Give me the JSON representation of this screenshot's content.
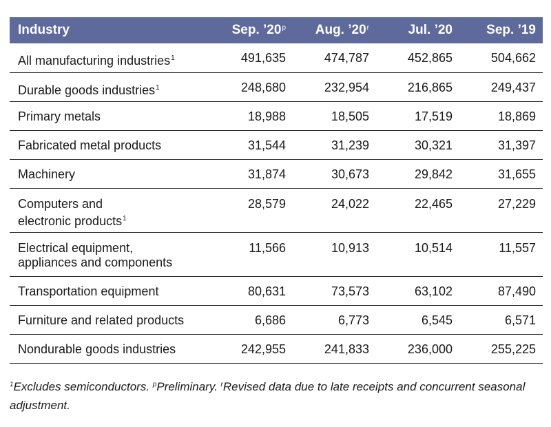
{
  "table": {
    "headers": {
      "industry": "Industry",
      "col1": "Sep. ’20",
      "col1_mark": "p",
      "col2": "Aug. ’20",
      "col2_mark": "r",
      "col3": "Jul. ’20",
      "col4": "Sep. ’19"
    },
    "rows": [
      {
        "label": "All manufacturing industries",
        "mark": "1",
        "v1": "491,635",
        "v2": "474,787",
        "v3": "452,865",
        "v4": "504,662"
      },
      {
        "label": "Durable goods industries",
        "mark": "1",
        "v1": "248,680",
        "v2": "232,954",
        "v3": "216,865",
        "v4": "249,437"
      },
      {
        "label": "Primary metals",
        "v1": "18,988",
        "v2": "18,505",
        "v3": "17,519",
        "v4": "18,869"
      },
      {
        "label": "Fabricated metal products",
        "v1": "31,544",
        "v2": "31,239",
        "v3": "30,321",
        "v4": "31,397"
      },
      {
        "label": "Machinery",
        "v1": "31,874",
        "v2": "30,673",
        "v3": "29,842",
        "v4": "31,655"
      },
      {
        "label_line1": "Computers and",
        "label_line2": "electronic products",
        "mark": "1",
        "v1": "28,579",
        "v2": "24,022",
        "v3": "22,465",
        "v4": "27,229"
      },
      {
        "label_line1": "Electrical equipment,",
        "label_line2": "appliances and components",
        "v1": "11,566",
        "v2": "10,913",
        "v3": "10,514",
        "v4": "11,557"
      },
      {
        "label": "Transportation equipment",
        "v1": "80,631",
        "v2": "73,573",
        "v3": "63,102",
        "v4": "87,490"
      },
      {
        "label": "Furniture and related products",
        "v1": "6,686",
        "v2": "6,773",
        "v3": "6,545",
        "v4": "6,571"
      },
      {
        "label": "Nondurable goods industries",
        "v1": "242,955",
        "v2": "241,833",
        "v3": "236,000",
        "v4": "255,225"
      }
    ]
  },
  "footnote": {
    "mark1": "1",
    "text1": "Excludes semiconductors. ",
    "mark2": "p",
    "text2": "Preliminary. ",
    "mark3": "r",
    "text3": "Revised data due to late receipts and concurrent seasonal adjustment."
  }
}
